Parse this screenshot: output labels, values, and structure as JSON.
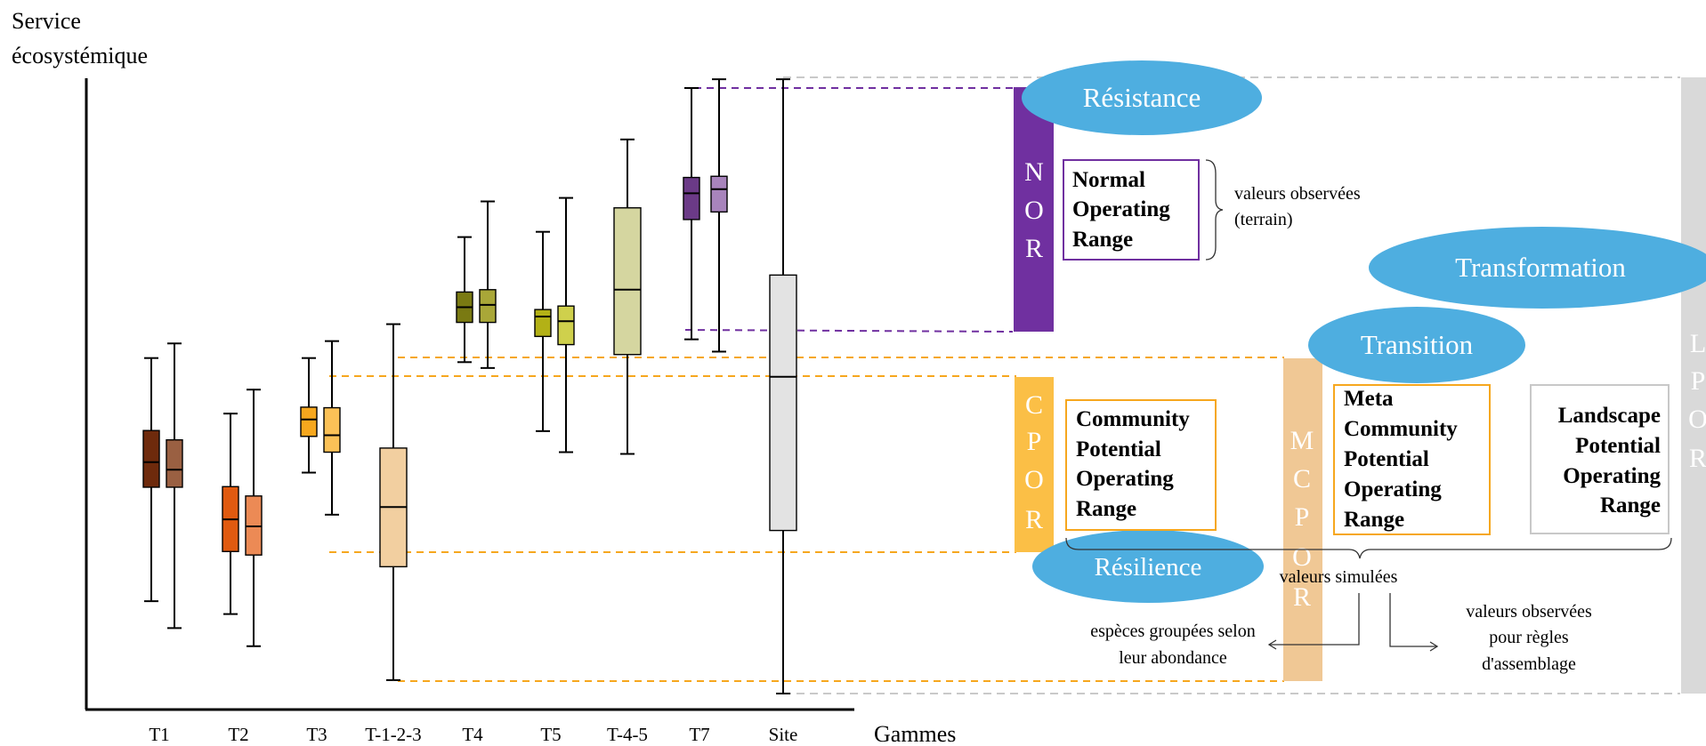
{
  "axis": {
    "y_label_line1": "Service",
    "y_label_line2": "écosystémique",
    "x_label": "Gammes"
  },
  "categories": [
    {
      "label": "T1",
      "boxes": [
        {
          "color": "#6e2a0c",
          "whisker_low": 0.158,
          "q1": 0.353,
          "median": 0.396,
          "q3": 0.45,
          "whisker_high": 0.574
        },
        {
          "color": "#9a6042",
          "whisker_low": 0.112,
          "q1": 0.353,
          "median": 0.383,
          "q3": 0.434,
          "whisker_high": 0.599
        }
      ]
    },
    {
      "label": "T2",
      "boxes": [
        {
          "color": "#e05a10",
          "whisker_low": 0.136,
          "q1": 0.243,
          "median": 0.298,
          "q3": 0.354,
          "whisker_high": 0.479
        },
        {
          "color": "#ec8a55",
          "whisker_low": 0.081,
          "q1": 0.237,
          "median": 0.286,
          "q3": 0.338,
          "whisker_high": 0.52
        }
      ]
    },
    {
      "label": "T3",
      "boxes": [
        {
          "color": "#f6a71e",
          "whisker_low": 0.378,
          "q1": 0.44,
          "median": 0.469,
          "q3": 0.49,
          "whisker_high": 0.574
        },
        {
          "color": "#fbc157",
          "whisker_low": 0.306,
          "q1": 0.413,
          "median": 0.442,
          "q3": 0.489,
          "whisker_high": 0.603
        }
      ]
    },
    {
      "label": "T-1-2-3",
      "boxes": [
        {
          "color": "#f2cfa0",
          "whisker_low": 0.023,
          "q1": 0.217,
          "median": 0.319,
          "q3": 0.42,
          "whisker_high": 0.632
        }
      ]
    },
    {
      "label": "T4",
      "boxes": [
        {
          "color": "#7a7a12",
          "whisker_low": 0.567,
          "q1": 0.635,
          "median": 0.661,
          "q3": 0.687,
          "whisker_high": 0.781
        },
        {
          "color": "#a9a738",
          "whisker_low": 0.557,
          "q1": 0.635,
          "median": 0.665,
          "q3": 0.691,
          "whisker_high": 0.842
        }
      ]
    },
    {
      "label": "T5",
      "boxes": [
        {
          "color": "#b3b116",
          "whisker_low": 0.449,
          "q1": 0.611,
          "median": 0.645,
          "q3": 0.657,
          "whisker_high": 0.79
        },
        {
          "color": "#cfd04c",
          "whisker_low": 0.413,
          "q1": 0.597,
          "median": 0.637,
          "q3": 0.663,
          "whisker_high": 0.848
        }
      ]
    },
    {
      "label": "T-4-5",
      "boxes": [
        {
          "color": "#d5d6a0",
          "whisker_low": 0.41,
          "q1": 0.58,
          "median": 0.691,
          "q3": 0.831,
          "whisker_high": 0.948
        }
      ]
    },
    {
      "label": "T7",
      "boxes": [
        {
          "color": "#6b3a87",
          "whisker_low": 0.606,
          "q1": 0.811,
          "median": 0.856,
          "q3": 0.883,
          "whisker_high": 1.036
        }
      ]
    },
    {
      "label": "Site",
      "boxes": [
        {
          "color": "#e3e3e3",
          "whisker_low": 0.0,
          "q1": 0.279,
          "median": 0.542,
          "q3": 0.716,
          "whisker_high": 1.051
        }
      ]
    }
  ],
  "extra_t7_box": {
    "color": "#a884bc",
    "whisker_low": 0.585,
    "q1": 0.824,
    "median": 0.863,
    "q3": 0.885,
    "whisker_high": 1.051
  },
  "bars": {
    "nor": {
      "letters": [
        "N",
        "O",
        "R"
      ],
      "color": "#7030a0"
    },
    "cpor": {
      "letters": [
        "C",
        "P",
        "O",
        "R"
      ],
      "color": "#fbbf46"
    },
    "mcpor": {
      "letters": [
        "M",
        "C",
        "P",
        "O",
        "R"
      ],
      "color": "#f0c895"
    },
    "lpor": {
      "letters": [
        "L",
        "P",
        "O",
        "R"
      ],
      "color": "#d9d9d9"
    }
  },
  "ellipses": {
    "resistance": "Résistance",
    "transformation": "Transformation",
    "transition": "Transition",
    "resilience": "Résilience",
    "color": "#4eaee0"
  },
  "boxes": {
    "nor": {
      "lines": [
        "Normal",
        "Operating",
        "Range"
      ],
      "border": "#7030a0"
    },
    "cpor": {
      "lines": [
        "Community",
        "Potential",
        "Operating",
        "Range"
      ],
      "border": "#f6a71e"
    },
    "mcpor": {
      "lines": [
        "Meta",
        "Community",
        "Potential",
        "Operating",
        "Range"
      ],
      "border": "#f6a71e"
    },
    "lpor": {
      "lines": [
        "Landscape",
        "Potential",
        "Operating",
        "Range"
      ],
      "border": "#c8c8c8"
    }
  },
  "annotations": {
    "observed_line1": "valeurs observées",
    "observed_line2": "(terrain)",
    "simulated": "valeurs simulées",
    "grouped_line1": "espèces groupées selon",
    "grouped_line2": "leur  abondance",
    "rules_line1": "valeurs observées",
    "rules_line2": "pour règles",
    "rules_line3": "d'assemblage"
  }
}
